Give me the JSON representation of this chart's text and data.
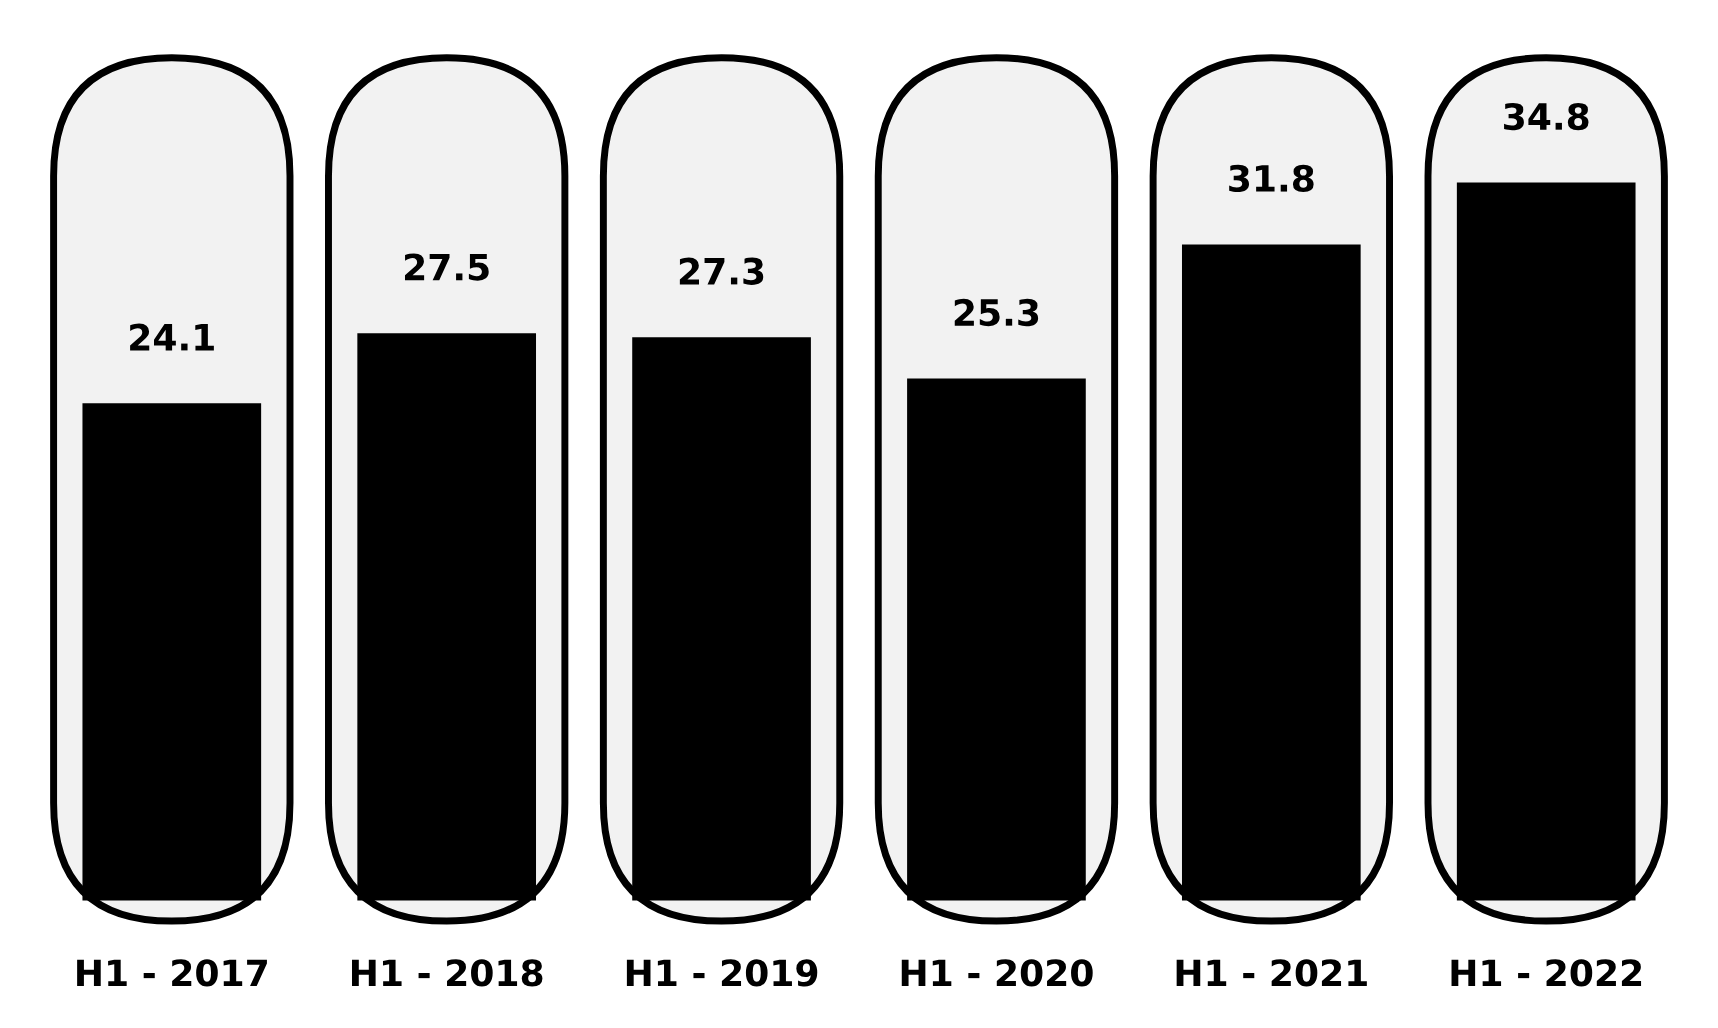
{
  "chart_data": {
    "type": "bar",
    "categories": [
      "H1 - 2017",
      "H1 - 2018",
      "H1 - 2019",
      "H1 - 2020",
      "H1 - 2021",
      "H1 - 2022"
    ],
    "values": [
      24.1,
      27.5,
      27.3,
      25.3,
      31.8,
      34.8
    ],
    "color": "#000000",
    "data_labels": true,
    "grid": false,
    "legend": false,
    "tick_labels": "x"
  }
}
